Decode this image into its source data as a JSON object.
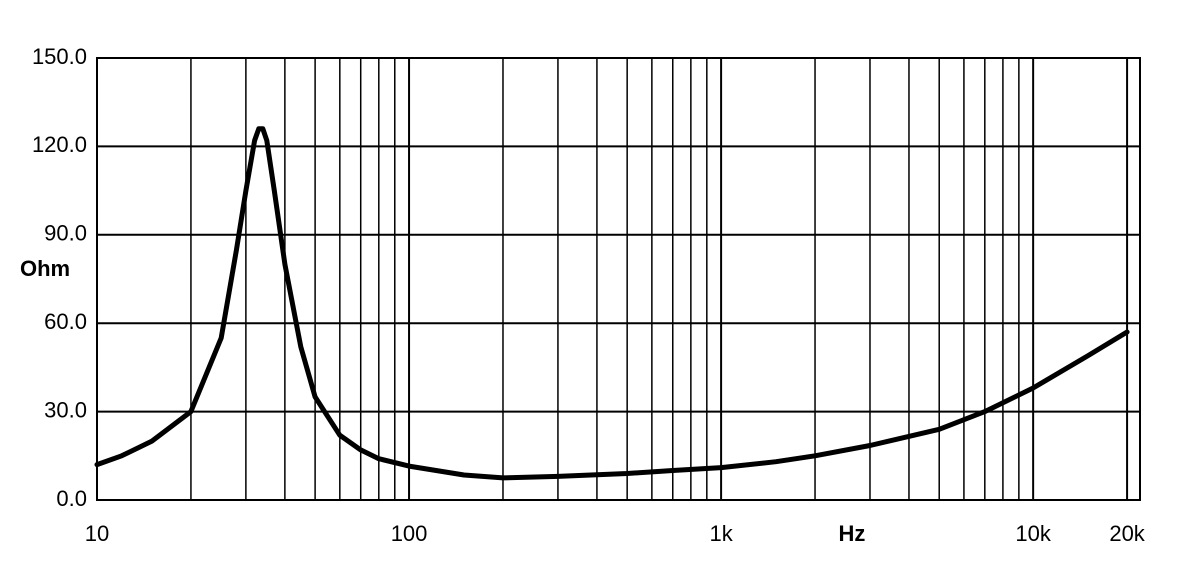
{
  "chart_data": {
    "type": "line",
    "x_label": "Hz",
    "y_label": "Ohm",
    "log_x": true,
    "grid": true,
    "color": "#000000",
    "x": [
      10,
      12,
      15,
      20,
      25,
      28,
      30,
      32,
      33,
      34,
      35,
      37,
      40,
      45,
      50,
      60,
      70,
      80,
      100,
      150,
      200,
      300,
      500,
      700,
      1000,
      1500,
      2000,
      3000,
      5000,
      7000,
      10000,
      15000,
      20000
    ],
    "values": [
      12,
      15,
      20,
      30,
      55,
      85,
      105,
      122,
      126,
      126,
      122,
      105,
      80,
      52,
      35,
      22,
      17,
      14,
      11.5,
      8.5,
      7.5,
      8,
      9,
      10,
      11,
      13,
      15,
      18.5,
      24,
      30,
      38,
      49,
      57
    ],
    "xlim": [
      10,
      22000
    ],
    "xticks": [
      10,
      100,
      {
        "value": 1000,
        "label": "1k"
      },
      {
        "value": 10000,
        "label": "10k"
      },
      {
        "value": 20000,
        "label": "20k"
      }
    ],
    "x_minor_ticks": [
      20,
      30,
      40,
      50,
      60,
      70,
      80,
      90,
      200,
      300,
      400,
      500,
      600,
      700,
      800,
      900,
      2000,
      3000,
      4000,
      5000,
      6000,
      7000,
      8000,
      9000
    ],
    "ylim": [
      0,
      150
    ],
    "yticks": [
      {
        "value": 0,
        "label": "0.0"
      },
      {
        "value": 30,
        "label": "30.0"
      },
      {
        "value": 60,
        "label": "60.0"
      },
      {
        "value": 90,
        "label": "90.0"
      },
      {
        "value": 120,
        "label": "120.0"
      },
      {
        "value": 150,
        "label": "150.0"
      }
    ]
  }
}
